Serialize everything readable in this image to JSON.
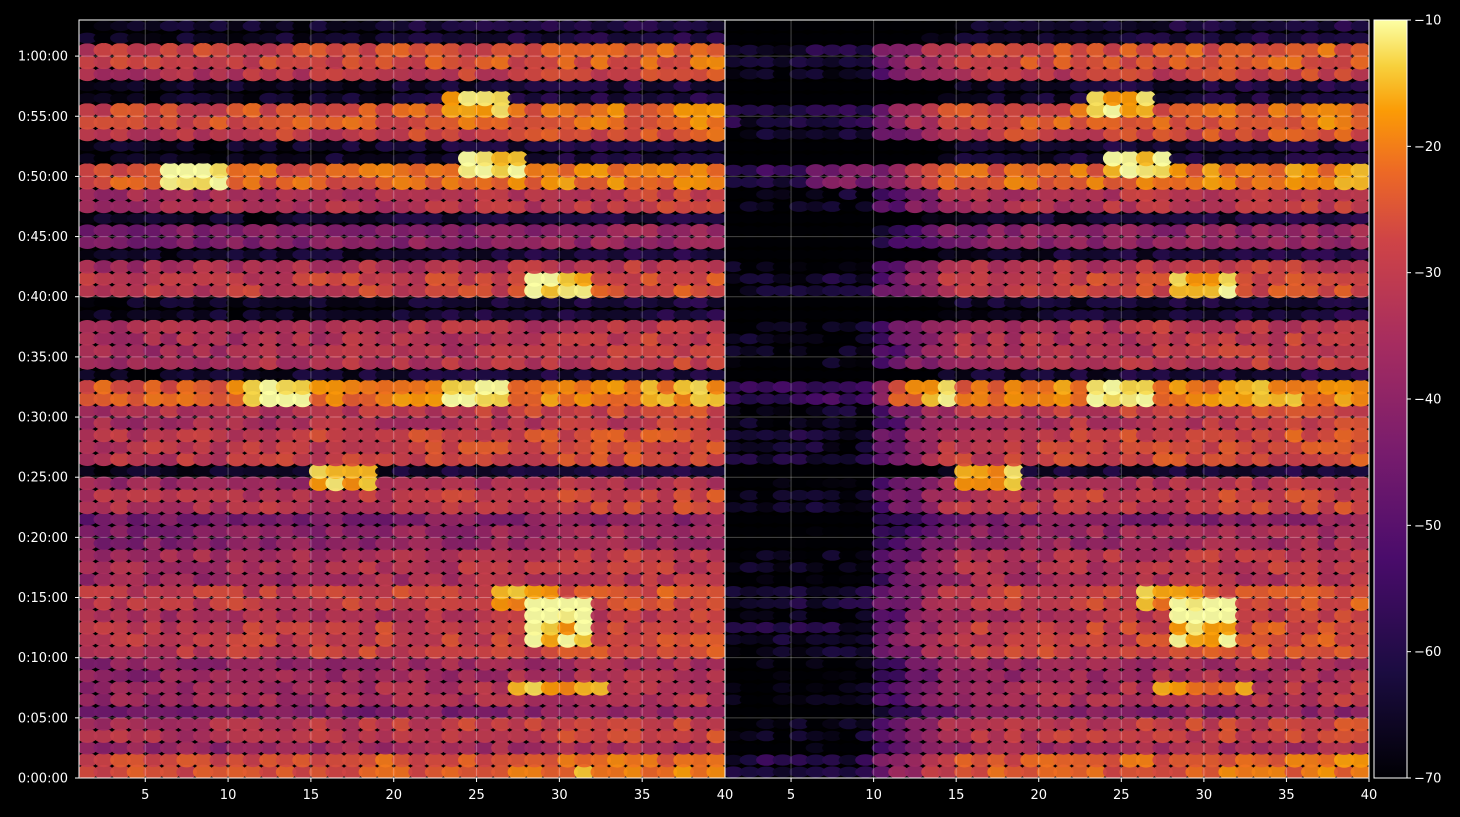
{
  "colors": {
    "background": "#000000",
    "axes_frame": "#ffffff",
    "grid": "#ffffff",
    "tick_text": "#ffffff",
    "colormap": "inferno"
  },
  "chart_data": {
    "type": "heatmap",
    "colormap": "inferno",
    "grid": true,
    "colorbar": {
      "position": "right",
      "range": [
        -70,
        -10
      ],
      "ticks": [
        -10,
        -20,
        -30,
        -40,
        -50,
        -60,
        -70
      ],
      "tick_labels": [
        "−10",
        "−20",
        "−30",
        "−40",
        "−50",
        "−60",
        "−70"
      ]
    },
    "y_axis": {
      "range_seconds": [
        0,
        3780
      ],
      "tick_values_seconds": [
        0,
        300,
        600,
        900,
        1200,
        1500,
        1800,
        2100,
        2400,
        2700,
        3000,
        3300,
        3600
      ],
      "tick_labels": [
        "0:00:00",
        "0:05:00",
        "0:10:00",
        "0:15:00",
        "0:20:00",
        "0:25:00",
        "0:30:00",
        "0:35:00",
        "0:40:00",
        "0:45:00",
        "0:50:00",
        "0:55:00",
        "1:00:00"
      ]
    },
    "panels": [
      {
        "x_range": [
          1,
          40
        ],
        "x_ticks": [
          5,
          10,
          15,
          20,
          25,
          30,
          35,
          40
        ],
        "x_tick_labels": [
          "5",
          "10",
          "15",
          "20",
          "25",
          "30",
          "35",
          "40"
        ],
        "attenuation": "none"
      },
      {
        "x_range": [
          1,
          40
        ],
        "x_ticks": [
          5,
          10,
          15,
          20,
          25,
          30,
          35,
          40
        ],
        "x_tick_labels": [
          "5",
          "10",
          "15",
          "20",
          "25",
          "30",
          "35",
          "40"
        ],
        "attenuation": "strong at low x (x < 10), fading toward x = 15"
      }
    ],
    "data_shape": {
      "x_bins": 39,
      "y_bins": 63,
      "value_unit": "dB (colorbar scale)"
    },
    "bright_rows_seconds": [
      [
        3600,
        -24
      ],
      [
        3540,
        -28
      ],
      [
        3300,
        -22
      ],
      [
        3240,
        -26
      ],
      [
        3000,
        -20
      ],
      [
        2880,
        -30
      ],
      [
        2700,
        -38
      ],
      [
        2520,
        -30
      ],
      [
        2460,
        -26
      ],
      [
        2220,
        -30
      ],
      [
        2100,
        -30
      ],
      [
        1920,
        -18
      ],
      [
        1860,
        -28
      ],
      [
        1740,
        -30
      ],
      [
        1680,
        -26
      ],
      [
        1620,
        -26
      ],
      [
        1440,
        -32
      ],
      [
        1380,
        -28
      ],
      [
        1320,
        -40
      ],
      [
        1200,
        -36
      ],
      [
        1080,
        -30
      ],
      [
        1020,
        -32
      ],
      [
        900,
        -26
      ],
      [
        840,
        -30
      ],
      [
        720,
        -26
      ],
      [
        660,
        -26
      ],
      [
        540,
        -34
      ],
      [
        480,
        -36
      ],
      [
        420,
        -32
      ],
      [
        360,
        -40
      ],
      [
        240,
        -28
      ],
      [
        180,
        -34
      ],
      [
        120,
        -34
      ],
      [
        60,
        -22
      ],
      [
        0,
        -38
      ]
    ],
    "hotspots": [
      {
        "x": 26,
        "y_seconds": 3060,
        "value": -16
      },
      {
        "x": 30,
        "y_seconds": 2460,
        "value": -18
      },
      {
        "x": 13,
        "y_seconds": 1920,
        "value": -14
      },
      {
        "x": 25,
        "y_seconds": 1920,
        "value": -14
      },
      {
        "x": 17,
        "y_seconds": 1500,
        "value": -20
      },
      {
        "x": 28,
        "y_seconds": 900,
        "value": -22
      },
      {
        "x": 30,
        "y_seconds": 840,
        "value": -12
      },
      {
        "x": 30,
        "y_seconds": 720,
        "value": -18
      },
      {
        "x": 30,
        "y_seconds": 450,
        "value": -20
      },
      {
        "x": 33,
        "y_seconds": 0,
        "value": -22
      },
      {
        "x": 25,
        "y_seconds": 3360,
        "value": -18
      },
      {
        "x": 8,
        "y_seconds": 3000,
        "value": -14
      }
    ]
  }
}
